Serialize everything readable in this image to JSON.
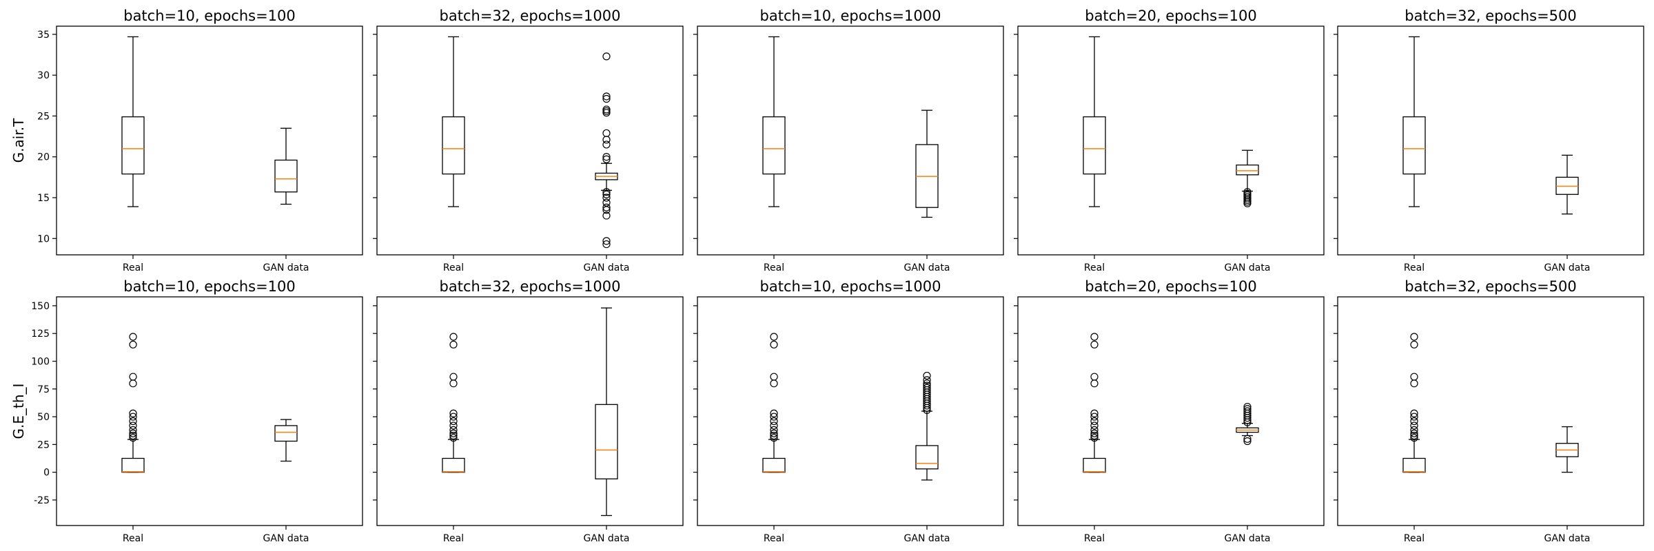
{
  "chart_data": [
    {
      "type": "box",
      "title": "batch=10, epochs=100",
      "ylabel": "G.air.T",
      "ylim": [
        8,
        36
      ],
      "categories": [
        "Real",
        "GAN data"
      ],
      "boxes": [
        {
          "whislo": 13.9,
          "q1": 17.9,
          "med": 21.0,
          "q3": 24.9,
          "whishi": 34.7,
          "fliers": []
        },
        {
          "whislo": 14.2,
          "q1": 15.7,
          "med": 17.3,
          "q3": 19.6,
          "whishi": 23.5,
          "fliers": []
        }
      ]
    },
    {
      "type": "box",
      "title": "batch=32, epochs=1000",
      "ylabel": "",
      "ylim": [
        8,
        36
      ],
      "categories": [
        "Real",
        "GAN data"
      ],
      "boxes": [
        {
          "whislo": 13.9,
          "q1": 17.9,
          "med": 21.0,
          "q3": 24.9,
          "whishi": 34.7,
          "fliers": []
        },
        {
          "whislo": 15.9,
          "q1": 17.2,
          "med": 17.6,
          "q3": 18.0,
          "whishi": 19.2,
          "fliers": [
            32.3,
            27.4,
            27.1,
            25.8,
            25.6,
            25.4,
            22.9,
            22.1,
            21.5,
            20.0,
            19.7,
            15.7,
            15.4,
            15.0,
            14.4,
            13.8,
            13.5,
            12.8,
            9.7,
            9.3
          ]
        }
      ]
    },
    {
      "type": "box",
      "title": "batch=10, epochs=1000",
      "ylabel": "",
      "ylim": [
        8,
        36
      ],
      "categories": [
        "Real",
        "GAN data"
      ],
      "boxes": [
        {
          "whislo": 13.9,
          "q1": 17.9,
          "med": 21.0,
          "q3": 24.9,
          "whishi": 34.7,
          "fliers": []
        },
        {
          "whislo": 12.6,
          "q1": 13.8,
          "med": 17.6,
          "q3": 21.5,
          "whishi": 25.7,
          "fliers": []
        }
      ]
    },
    {
      "type": "box",
      "title": "batch=20, epochs=100",
      "ylabel": "",
      "ylim": [
        8,
        36
      ],
      "categories": [
        "Real",
        "GAN data"
      ],
      "boxes": [
        {
          "whislo": 13.9,
          "q1": 17.9,
          "med": 21.0,
          "q3": 24.9,
          "whishi": 34.7,
          "fliers": []
        },
        {
          "whislo": 15.8,
          "q1": 17.8,
          "med": 18.3,
          "q3": 19.0,
          "whishi": 20.8,
          "fliers": [
            15.7,
            15.5,
            15.3,
            15.1,
            14.9,
            14.7,
            14.5,
            14.3
          ]
        }
      ]
    },
    {
      "type": "box",
      "title": "batch=32, epochs=500",
      "ylabel": "",
      "ylim": [
        8,
        36
      ],
      "categories": [
        "Real",
        "GAN data"
      ],
      "boxes": [
        {
          "whislo": 13.9,
          "q1": 17.9,
          "med": 21.0,
          "q3": 24.9,
          "whishi": 34.7,
          "fliers": []
        },
        {
          "whislo": 13.0,
          "q1": 15.4,
          "med": 16.4,
          "q3": 17.5,
          "whishi": 20.2,
          "fliers": []
        }
      ]
    },
    {
      "type": "box",
      "title": "batch=10, epochs=100",
      "ylabel": "G.E_th_I",
      "ylim": [
        -48,
        158
      ],
      "categories": [
        "Real",
        "GAN data"
      ],
      "boxes": [
        {
          "whislo": 0.0,
          "q1": 0.0,
          "med": 0.5,
          "q3": 12.5,
          "whishi": 29.5,
          "fliers": [
            122.0,
            115.0,
            86.0,
            80.0,
            53.0,
            50.0,
            46.0,
            42.0,
            38.0,
            35.0,
            33.0,
            31.0
          ]
        },
        {
          "whislo": 10.0,
          "q1": 28.0,
          "med": 36.0,
          "q3": 42.0,
          "whishi": 47.5,
          "fliers": []
        }
      ]
    },
    {
      "type": "box",
      "title": "batch=32, epochs=1000",
      "ylabel": "",
      "ylim": [
        -48,
        158
      ],
      "categories": [
        "Real",
        "GAN data"
      ],
      "boxes": [
        {
          "whislo": 0.0,
          "q1": 0.0,
          "med": 0.5,
          "q3": 12.5,
          "whishi": 29.5,
          "fliers": [
            122.0,
            115.0,
            86.0,
            80.0,
            53.0,
            50.0,
            46.0,
            42.0,
            38.0,
            35.0,
            33.0,
            31.0
          ]
        },
        {
          "whislo": -39.0,
          "q1": -6.0,
          "med": 20.0,
          "q3": 61.0,
          "whishi": 148.0,
          "fliers": []
        }
      ]
    },
    {
      "type": "box",
      "title": "batch=10, epochs=1000",
      "ylabel": "",
      "ylim": [
        -48,
        158
      ],
      "categories": [
        "Real",
        "GAN data"
      ],
      "boxes": [
        {
          "whislo": 0.0,
          "q1": 0.0,
          "med": 0.5,
          "q3": 12.5,
          "whishi": 29.5,
          "fliers": [
            122.0,
            115.0,
            86.0,
            80.0,
            53.0,
            50.0,
            46.0,
            42.0,
            38.0,
            35.0,
            33.0,
            31.0
          ]
        },
        {
          "whislo": -7.0,
          "q1": 3.0,
          "med": 8.0,
          "q3": 24.0,
          "whishi": 55.0,
          "fliers": [
            87.0,
            83.0,
            80.0,
            78.0,
            76.0,
            74.0,
            72.0,
            70.0,
            68.0,
            66.0,
            64.0,
            62.0,
            60.0,
            58.0,
            56.0
          ]
        }
      ]
    },
    {
      "type": "box",
      "title": "batch=20, epochs=100",
      "ylabel": "",
      "ylim": [
        -48,
        158
      ],
      "categories": [
        "Real",
        "GAN data"
      ],
      "boxes": [
        {
          "whislo": 0.0,
          "q1": 0.0,
          "med": 0.5,
          "q3": 12.5,
          "whishi": 29.5,
          "fliers": [
            122.0,
            115.0,
            86.0,
            80.0,
            53.0,
            50.0,
            46.0,
            42.0,
            38.0,
            35.0,
            33.0,
            31.0
          ]
        },
        {
          "whislo": 33.0,
          "q1": 36.0,
          "med": 38.0,
          "q3": 40.0,
          "whishi": 44.0,
          "fliers": [
            59.0,
            57.0,
            55.0,
            53.0,
            51.0,
            49.0,
            47.0,
            45.0,
            30.0,
            28.0
          ]
        }
      ]
    },
    {
      "type": "box",
      "title": "batch=32, epochs=500",
      "ylabel": "",
      "ylim": [
        -48,
        158
      ],
      "categories": [
        "Real",
        "GAN data"
      ],
      "boxes": [
        {
          "whislo": 0.0,
          "q1": 0.0,
          "med": 0.5,
          "q3": 12.5,
          "whishi": 29.5,
          "fliers": [
            122.0,
            115.0,
            86.0,
            80.0,
            53.0,
            50.0,
            46.0,
            42.0,
            38.0,
            35.0,
            33.0,
            31.0
          ]
        },
        {
          "whislo": 0.0,
          "q1": 14.0,
          "med": 20.0,
          "q3": 26.0,
          "whishi": 41.0,
          "fliers": []
        }
      ]
    }
  ],
  "rows": [
    {
      "yticks": [
        10,
        15,
        20,
        25,
        30,
        35
      ]
    },
    {
      "yticks": [
        -25,
        0,
        25,
        50,
        75,
        100,
        125,
        150
      ]
    }
  ],
  "colors": {
    "median": "#ff7f0e",
    "stroke": "#000000",
    "background": "#ffffff"
  }
}
